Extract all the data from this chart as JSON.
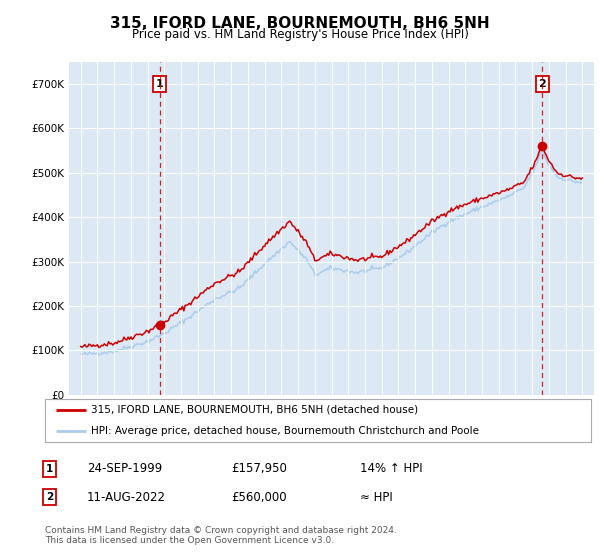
{
  "title": "315, IFORD LANE, BOURNEMOUTH, BH6 5NH",
  "subtitle": "Price paid vs. HM Land Registry's House Price Index (HPI)",
  "plot_bg_color": "#dce9f5",
  "ylim": [
    0,
    750000
  ],
  "yticks": [
    0,
    100000,
    200000,
    300000,
    400000,
    500000,
    600000,
    700000
  ],
  "ytick_labels": [
    "£0",
    "£100K",
    "£200K",
    "£300K",
    "£400K",
    "£500K",
    "£600K",
    "£700K"
  ],
  "sale_points": [
    {
      "date": 1999.73,
      "price": 157950,
      "label": "1"
    },
    {
      "date": 2022.61,
      "price": 560000,
      "label": "2"
    }
  ],
  "legend_line1": "315, IFORD LANE, BOURNEMOUTH, BH6 5NH (detached house)",
  "legend_line2": "HPI: Average price, detached house, Bournemouth Christchurch and Poole",
  "annotation1": [
    "1",
    "24-SEP-1999",
    "£157,950",
    "14% ↑ HPI"
  ],
  "annotation2": [
    "2",
    "11-AUG-2022",
    "£560,000",
    "≈ HPI"
  ],
  "footnote1": "Contains HM Land Registry data © Crown copyright and database right 2024.",
  "footnote2": "This data is licensed under the Open Government Licence v3.0.",
  "red_color": "#cc0000",
  "blue_color": "#aaccee",
  "title_fontsize": 11,
  "subtitle_fontsize": 9
}
